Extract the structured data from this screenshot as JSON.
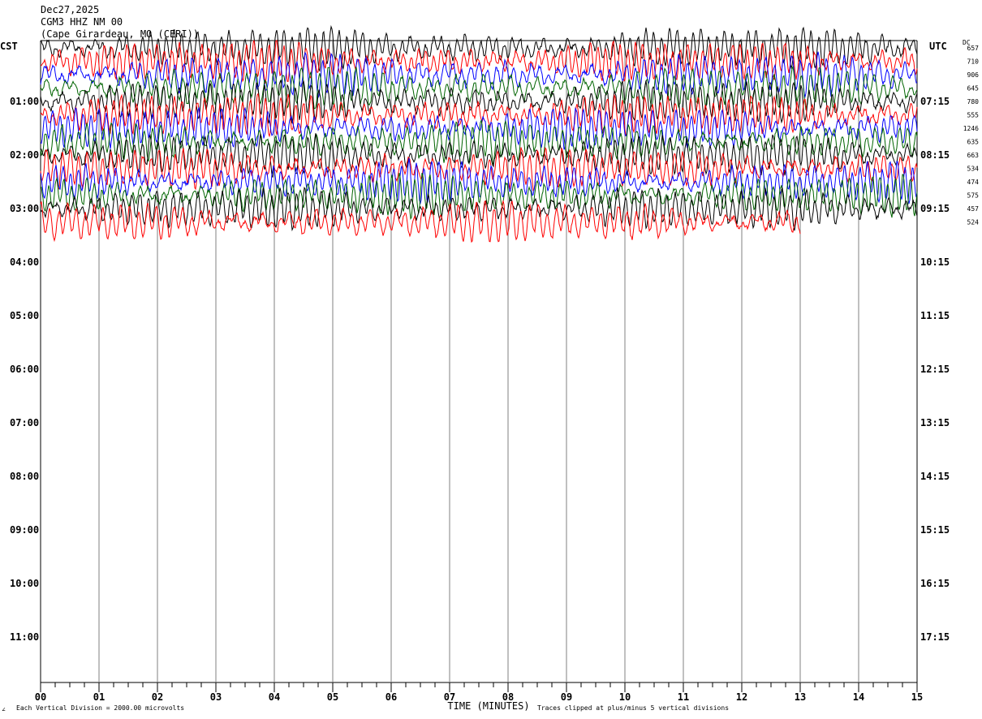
{
  "header": {
    "date": "Dec27,2025",
    "station": "CGM3 HHZ NM 00",
    "location": "(Cape Girardeau, MO (CERI))"
  },
  "left_zone_label": "CST",
  "right_zone_label": "UTC",
  "dc_header": "DC",
  "footer": {
    "left_marker": "∠",
    "scale_note": "Each Vertical Division = 2000.00 microvolts",
    "clip_note": "Traces clipped at plus/minus 5 vertical divisions"
  },
  "colors": {
    "trace_cycle": [
      "#000000",
      "#ff0000",
      "#0000ff",
      "#006400"
    ],
    "grid": "#808080"
  },
  "chart_data": {
    "type": "line",
    "title": "",
    "xlabel": "TIME (MINUTES)",
    "ylabel": "",
    "xlim": [
      0,
      15
    ],
    "x_tick_labels": [
      "00",
      "01",
      "02",
      "03",
      "04",
      "05",
      "06",
      "07",
      "08",
      "09",
      "10",
      "11",
      "12",
      "13",
      "14",
      "15"
    ],
    "x_minor_step": 0.25,
    "left_hour_labels": [
      "01:00",
      "02:00",
      "03:00",
      "04:00",
      "05:00",
      "06:00",
      "07:00",
      "08:00",
      "09:00",
      "10:00",
      "11:00"
    ],
    "right_hour_labels": [
      "07:15",
      "08:15",
      "09:15",
      "10:15",
      "11:15",
      "12:15",
      "13:15",
      "14:15",
      "15:15",
      "16:15",
      "17:15"
    ],
    "rows_per_hour": 4,
    "dc_offsets": [
      657,
      710,
      906,
      645,
      780,
      555,
      1246,
      635,
      663,
      534,
      474,
      575,
      457,
      524
    ],
    "recorded_traces": 14,
    "trace_colors_by_row": [
      "#000000",
      "#ff0000",
      "#0000ff",
      "#006400",
      "#000000",
      "#ff0000",
      "#0000ff",
      "#006400",
      "#000000",
      "#ff0000",
      "#0000ff",
      "#006400",
      "#000000",
      "#ff0000"
    ],
    "partial_last_trace_end_minute": 13.0,
    "grid": true
  }
}
